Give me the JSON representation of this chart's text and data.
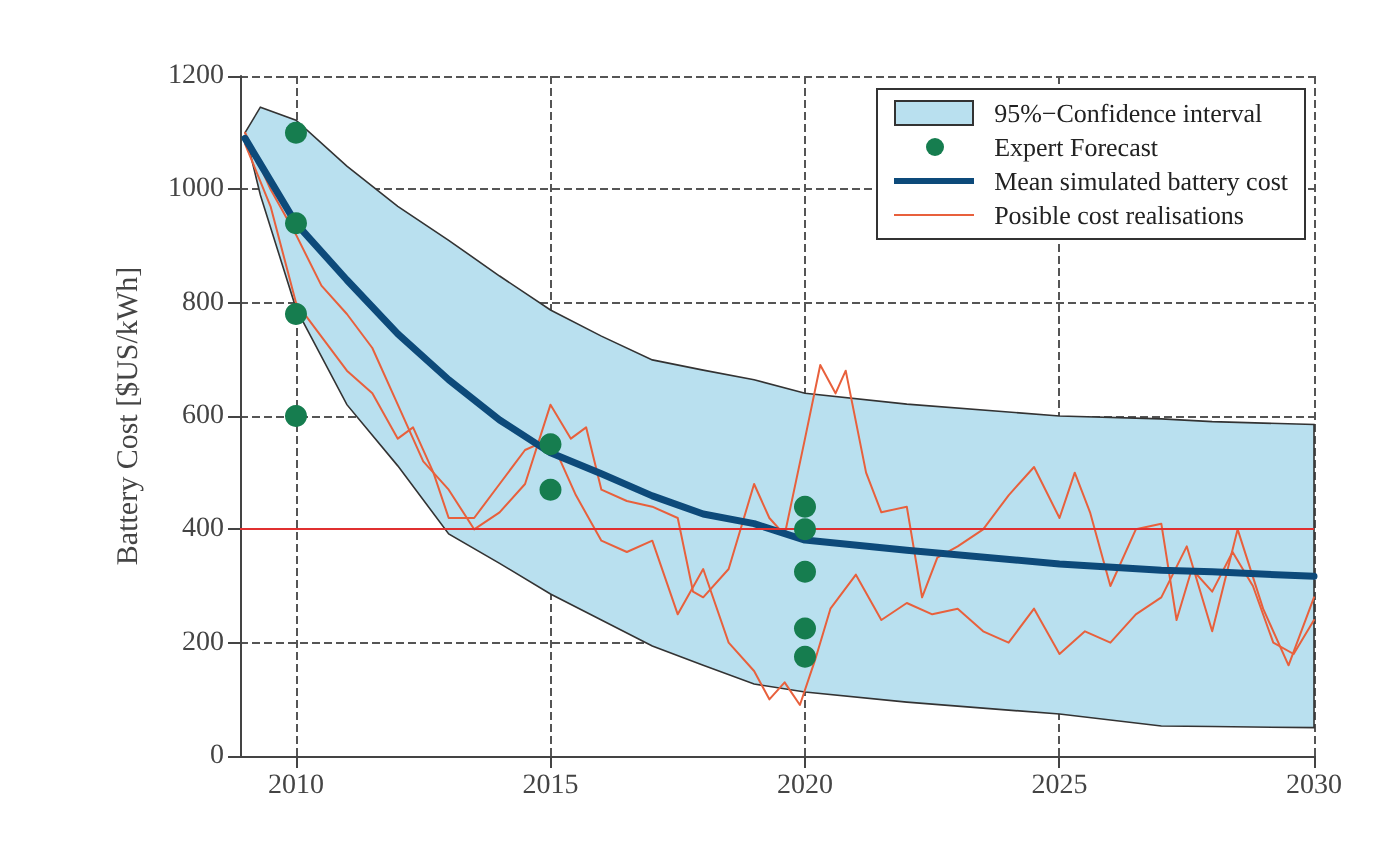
{
  "chart_data": {
    "type": "line",
    "ylabel": "Battery Cost [$US/kWh]",
    "xlim": [
      2008.9,
      2030
    ],
    "xticks": [
      2010,
      2015,
      2020,
      2025,
      2030
    ],
    "ylim": [
      0,
      1200
    ],
    "yticks": [
      0,
      200,
      400,
      600,
      800,
      1000,
      1200
    ],
    "grid": true,
    "legend": "top right",
    "marker": "none",
    "line_style": "solid",
    "annotations": [
      "95%−Confidence interval"
    ],
    "ref_lines": [
      {
        "axis": "y",
        "value": 400,
        "label": null,
        "color": "#e03030"
      }
    ],
    "series": [
      {
        "name": "Expert Forecast",
        "type": "scatter",
        "color": "#167d4f",
        "marker": "circle",
        "x": [
          2010,
          2010,
          2010,
          2010,
          2015,
          2015,
          2020,
          2020,
          2020,
          2020,
          2020
        ],
        "values": [
          1100,
          940,
          780,
          600,
          550,
          470,
          440,
          400,
          325,
          225,
          175
        ]
      },
      {
        "name": "Mean simulated battery cost",
        "color": "#0d4a7a",
        "x": [
          2009,
          2009.3,
          2010,
          2011,
          2012,
          2013,
          2014,
          2015,
          2016,
          2017,
          2018,
          2019,
          2020,
          2022,
          2025,
          2027,
          2028,
          2030
        ],
        "values": [
          1090,
          1045,
          940,
          840,
          745,
          664,
          593,
          535,
          498,
          459,
          427,
          410,
          381,
          363,
          339,
          328,
          325,
          317
        ],
        "upper": [
          1100,
          1145,
          1122,
          1041,
          970,
          910,
          847,
          787,
          741,
          699,
          681,
          664,
          640,
          621,
          600,
          595,
          590,
          585
        ],
        "lower": [
          1100,
          990,
          790,
          620,
          512,
          392,
          340,
          286,
          240,
          194,
          160,
          127,
          113,
          95,
          74,
          53,
          52,
          50
        ]
      },
      {
        "name": "Posible cost realisations",
        "color": "#e8603c",
        "x": [
          2009,
          2009.5,
          2010,
          2010.5,
          2011,
          2011.5,
          2012,
          2012.5,
          2013,
          2013.5,
          2014,
          2014.5,
          2015,
          2015.4,
          2015.7,
          2016,
          2016.5,
          2017,
          2017.5,
          2017.8,
          2018,
          2018.5,
          2019,
          2019.3,
          2019.6,
          2020,
          2020.3,
          2020.6,
          2020.8,
          2021.2,
          2021.5,
          2022,
          2022.3,
          2022.6,
          2023,
          2023.5,
          2024,
          2024.5,
          2025,
          2025.3,
          2025.6,
          2026,
          2026.5,
          2027,
          2027.3,
          2027.6,
          2028,
          2028.4,
          2028.8,
          2029.2,
          2029.6,
          2030
        ],
        "values": [
          1100,
          1000,
          920,
          830,
          780,
          720,
          620,
          520,
          470,
          400,
          430,
          480,
          620,
          560,
          580,
          470,
          450,
          440,
          420,
          290,
          280,
          330,
          480,
          420,
          390,
          560,
          690,
          640,
          680,
          500,
          430,
          440,
          280,
          350,
          370,
          400,
          460,
          510,
          420,
          500,
          430,
          300,
          400,
          410,
          240,
          330,
          290,
          360,
          300,
          200,
          180,
          240
        ]
      },
      {
        "color": "#e8603c",
        "x": [
          2009,
          2009.5,
          2010,
          2010.5,
          2011,
          2011.5,
          2012,
          2012.3,
          2012.7,
          2013,
          2013.5,
          2014,
          2014.5,
          2015,
          2015.5,
          2016,
          2016.5,
          2017,
          2017.5,
          2018,
          2018.5,
          2019,
          2019.3,
          2019.6,
          2019.9,
          2020.2,
          2020.5,
          2021,
          2021.5,
          2022,
          2022.5,
          2023,
          2023.5,
          2024,
          2024.5,
          2025,
          2025.5,
          2026,
          2026.5,
          2027,
          2027.5,
          2028,
          2028.5,
          2029,
          2029.5,
          2030
        ],
        "values": [
          1080,
          970,
          800,
          740,
          680,
          640,
          560,
          580,
          500,
          420,
          420,
          480,
          540,
          560,
          460,
          380,
          360,
          380,
          250,
          330,
          200,
          150,
          100,
          130,
          90,
          170,
          260,
          320,
          240,
          270,
          250,
          260,
          220,
          200,
          260,
          180,
          220,
          200,
          250,
          280,
          370,
          220,
          400,
          260,
          160,
          280
        ]
      }
    ]
  }
}
